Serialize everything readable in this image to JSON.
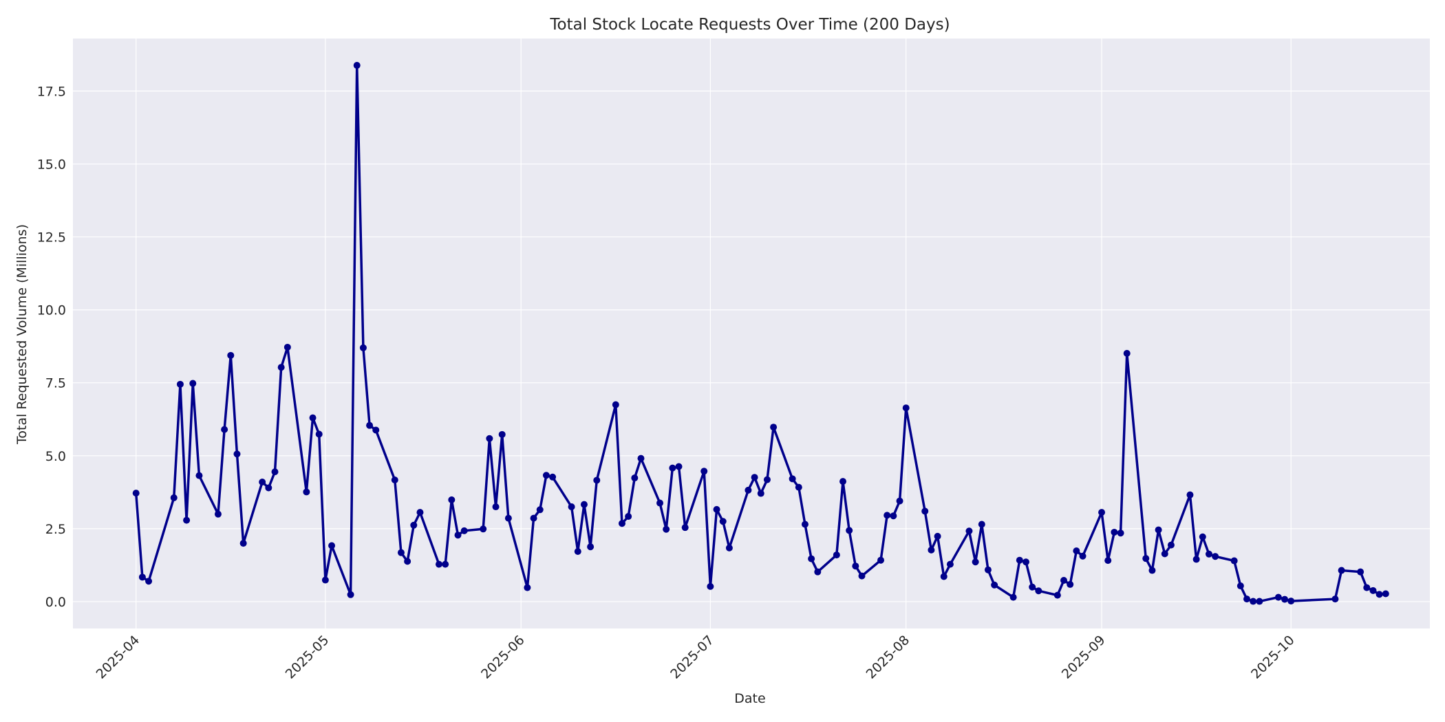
{
  "chart_data": {
    "type": "line",
    "title": "Total Stock Locate Requests Over Time (200 Days)",
    "xlabel": "Date",
    "ylabel": "Total Requested Volume (Millions)",
    "xlim": [
      "2025-03-22",
      "2025-10-23"
    ],
    "ylim": [
      -0.92,
      19.3
    ],
    "x_ticks": [
      "2025-04-01",
      "2025-05-01",
      "2025-06-01",
      "2025-07-01",
      "2025-08-01",
      "2025-09-01",
      "2025-10-01"
    ],
    "x_tick_labels": [
      "2025-04",
      "2025-05",
      "2025-06",
      "2025-07",
      "2025-08",
      "2025-09",
      "2025-10"
    ],
    "y_ticks": [
      0.0,
      2.5,
      5.0,
      7.5,
      10.0,
      12.5,
      15.0,
      17.5
    ],
    "y_tick_labels": [
      "0.0",
      "2.5",
      "5.0",
      "7.5",
      "10.0",
      "12.5",
      "15.0",
      "17.5"
    ],
    "grid": true,
    "colors": {
      "line": "#00008b",
      "plot_background": "#eaeaf2",
      "grid": "#ffffff"
    },
    "series": [
      {
        "x": [
          "2025-04-01",
          "2025-04-02",
          "2025-04-03",
          "2025-04-07",
          "2025-04-08",
          "2025-04-09",
          "2025-04-10",
          "2025-04-11",
          "2025-04-14",
          "2025-04-15",
          "2025-04-16",
          "2025-04-17",
          "2025-04-18",
          "2025-04-21",
          "2025-04-22",
          "2025-04-23",
          "2025-04-24",
          "2025-04-25",
          "2025-04-28",
          "2025-04-29",
          "2025-04-30",
          "2025-05-01",
          "2025-05-02",
          "2025-05-05",
          "2025-05-06",
          "2025-05-07",
          "2025-05-08",
          "2025-05-09",
          "2025-05-12",
          "2025-05-13",
          "2025-05-14",
          "2025-05-15",
          "2025-05-16",
          "2025-05-19",
          "2025-05-20",
          "2025-05-21",
          "2025-05-22",
          "2025-05-23",
          "2025-05-26",
          "2025-05-27",
          "2025-05-28",
          "2025-05-29",
          "2025-05-30",
          "2025-06-02",
          "2025-06-03",
          "2025-06-04",
          "2025-06-05",
          "2025-06-06",
          "2025-06-09",
          "2025-06-10",
          "2025-06-11",
          "2025-06-12",
          "2025-06-13",
          "2025-06-16",
          "2025-06-17",
          "2025-06-18",
          "2025-06-19",
          "2025-06-20",
          "2025-06-23",
          "2025-06-24",
          "2025-06-25",
          "2025-06-26",
          "2025-06-27",
          "2025-06-30",
          "2025-07-01",
          "2025-07-02",
          "2025-07-03",
          "2025-07-04",
          "2025-07-07",
          "2025-07-08",
          "2025-07-09",
          "2025-07-10",
          "2025-07-11",
          "2025-07-14",
          "2025-07-15",
          "2025-07-16",
          "2025-07-17",
          "2025-07-18",
          "2025-07-21",
          "2025-07-22",
          "2025-07-23",
          "2025-07-24",
          "2025-07-25",
          "2025-07-28",
          "2025-07-29",
          "2025-07-30",
          "2025-07-31",
          "2025-08-01",
          "2025-08-04",
          "2025-08-05",
          "2025-08-06",
          "2025-08-07",
          "2025-08-08",
          "2025-08-11",
          "2025-08-12",
          "2025-08-13",
          "2025-08-14",
          "2025-08-15",
          "2025-08-18",
          "2025-08-19",
          "2025-08-20",
          "2025-08-21",
          "2025-08-22",
          "2025-08-25",
          "2025-08-26",
          "2025-08-27",
          "2025-08-28",
          "2025-08-29",
          "2025-09-01",
          "2025-09-02",
          "2025-09-03",
          "2025-09-04",
          "2025-09-05",
          "2025-09-08",
          "2025-09-09",
          "2025-09-10",
          "2025-09-11",
          "2025-09-12",
          "2025-09-15",
          "2025-09-16",
          "2025-09-17",
          "2025-09-18",
          "2025-09-19",
          "2025-09-22",
          "2025-09-23",
          "2025-09-24",
          "2025-09-25",
          "2025-09-26",
          "2025-09-29",
          "2025-09-30",
          "2025-10-01",
          "2025-10-08",
          "2025-10-09",
          "2025-10-12",
          "2025-10-13",
          "2025-10-14",
          "2025-10-15",
          "2025-10-16"
        ],
        "y": [
          3.72,
          0.84,
          0.7,
          3.56,
          7.45,
          2.79,
          7.48,
          4.32,
          3.0,
          5.9,
          8.44,
          5.06,
          2.0,
          4.1,
          3.9,
          4.45,
          8.03,
          8.72,
          3.76,
          6.3,
          5.74,
          0.74,
          1.92,
          0.24,
          18.38,
          8.7,
          6.04,
          5.88,
          4.17,
          1.68,
          1.38,
          2.62,
          3.06,
          1.28,
          1.28,
          3.49,
          2.28,
          2.43,
          2.49,
          5.59,
          3.25,
          5.73,
          2.86,
          0.48,
          2.86,
          3.15,
          4.33,
          4.27,
          3.25,
          1.72,
          3.33,
          1.88,
          4.16,
          6.75,
          2.68,
          2.92,
          4.24,
          4.91,
          3.38,
          2.48,
          4.58,
          4.63,
          2.54,
          4.47,
          0.52,
          3.16,
          2.75,
          1.84,
          3.82,
          4.26,
          3.71,
          4.18,
          5.98,
          4.21,
          3.92,
          2.65,
          1.47,
          1.02,
          1.6,
          4.12,
          2.44,
          1.22,
          0.88,
          1.42,
          2.96,
          2.94,
          3.45,
          6.64,
          3.1,
          1.77,
          2.24,
          0.86,
          1.28,
          2.42,
          1.36,
          2.65,
          1.09,
          0.57,
          0.15,
          1.42,
          1.36,
          0.5,
          0.37,
          0.22,
          0.73,
          0.59,
          1.74,
          1.56,
          3.06,
          1.41,
          2.38,
          2.35,
          8.51,
          1.48,
          1.07,
          2.46,
          1.64,
          1.94,
          3.66,
          1.45,
          2.22,
          1.63,
          1.55,
          1.4,
          0.54,
          0.09,
          0.01,
          0.01,
          0.15,
          0.08,
          0.02,
          0.09,
          1.07,
          1.02,
          0.48,
          0.38,
          0.25,
          0.27
        ]
      }
    ]
  }
}
